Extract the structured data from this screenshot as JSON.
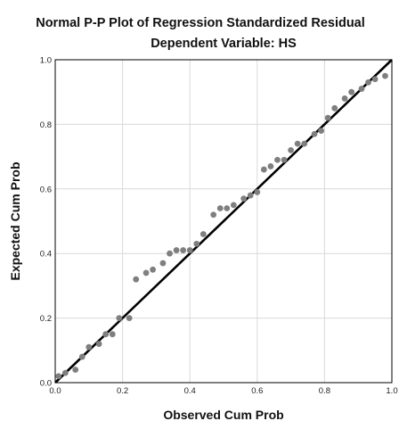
{
  "chart_data": {
    "type": "scatter",
    "title": "Normal P-P Plot of Regression Standardized Residual",
    "subtitle": "Dependent Variable: HS",
    "xlabel": "Observed Cum Prob",
    "ylabel": "Expected Cum Prob",
    "xlim": [
      0,
      1
    ],
    "ylim": [
      0,
      1
    ],
    "x_ticks": [
      "0.0",
      "0.2",
      "0.4",
      "0.6",
      "0.8",
      "1.0"
    ],
    "y_ticks": [
      "0.0",
      "0.2",
      "0.4",
      "0.6",
      "0.8",
      "1.0"
    ],
    "grid": true,
    "reference_line": {
      "from": [
        0,
        0
      ],
      "to": [
        1,
        1
      ]
    },
    "colors": {
      "points": "#7f7f7f",
      "line": "#000000",
      "grid": "#d9d9d9"
    },
    "points": [
      [
        0.01,
        0.02
      ],
      [
        0.03,
        0.03
      ],
      [
        0.06,
        0.04
      ],
      [
        0.08,
        0.08
      ],
      [
        0.1,
        0.11
      ],
      [
        0.13,
        0.12
      ],
      [
        0.15,
        0.15
      ],
      [
        0.17,
        0.15
      ],
      [
        0.19,
        0.2
      ],
      [
        0.22,
        0.2
      ],
      [
        0.24,
        0.32
      ],
      [
        0.27,
        0.34
      ],
      [
        0.29,
        0.35
      ],
      [
        0.32,
        0.37
      ],
      [
        0.34,
        0.4
      ],
      [
        0.36,
        0.41
      ],
      [
        0.38,
        0.41
      ],
      [
        0.4,
        0.41
      ],
      [
        0.42,
        0.43
      ],
      [
        0.44,
        0.46
      ],
      [
        0.47,
        0.52
      ],
      [
        0.49,
        0.54
      ],
      [
        0.51,
        0.54
      ],
      [
        0.53,
        0.55
      ],
      [
        0.56,
        0.57
      ],
      [
        0.58,
        0.58
      ],
      [
        0.6,
        0.59
      ],
      [
        0.62,
        0.66
      ],
      [
        0.64,
        0.67
      ],
      [
        0.66,
        0.69
      ],
      [
        0.68,
        0.69
      ],
      [
        0.7,
        0.72
      ],
      [
        0.72,
        0.74
      ],
      [
        0.74,
        0.74
      ],
      [
        0.77,
        0.77
      ],
      [
        0.79,
        0.78
      ],
      [
        0.81,
        0.82
      ],
      [
        0.83,
        0.85
      ],
      [
        0.86,
        0.88
      ],
      [
        0.88,
        0.9
      ],
      [
        0.91,
        0.91
      ],
      [
        0.93,
        0.93
      ],
      [
        0.95,
        0.94
      ],
      [
        0.98,
        0.95
      ]
    ]
  }
}
